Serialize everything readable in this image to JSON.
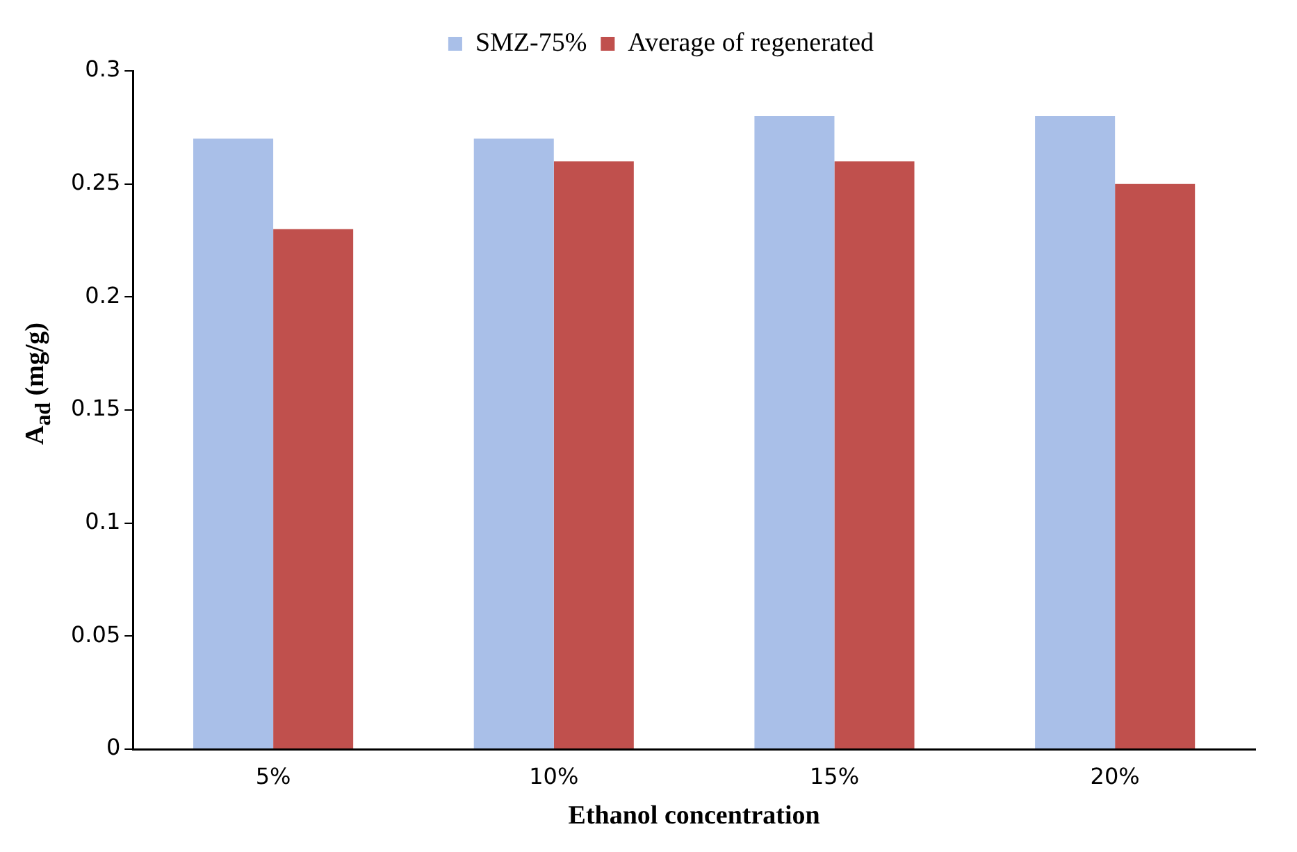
{
  "chart_data": {
    "type": "bar",
    "xlabel": "Ethanol concentration",
    "ylabel": "A$_{ad}$ (mg/g)",
    "categories": [
      "5%",
      "10%",
      "15%",
      "20%"
    ],
    "series": [
      {
        "name": "SMZ-75%",
        "color": "#a9bfe8",
        "values": [
          0.27,
          0.27,
          0.28,
          0.28
        ]
      },
      {
        "name": "Average of regenerated",
        "color": "#c0504d",
        "values": [
          0.23,
          0.26,
          0.26,
          0.25
        ]
      }
    ],
    "ylim": [
      0,
      0.3
    ],
    "yticks": [
      0,
      0.05,
      0.1,
      0.15,
      0.2,
      0.25,
      0.3
    ],
    "grid": false,
    "legend": "top"
  }
}
